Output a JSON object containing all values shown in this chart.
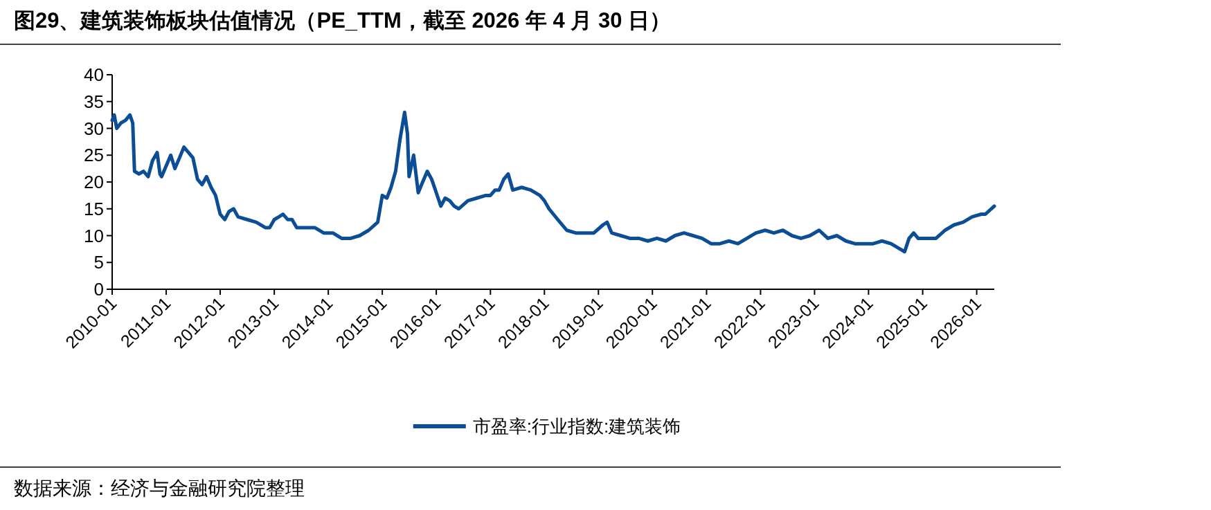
{
  "chart_data": {
    "type": "line",
    "title": "图29、建筑装饰板块估值情况（PE_TTM，截至 2026 年 4 月 30 日）",
    "annotations": [
      "数据来源：经济与金融研究院整理"
    ],
    "legend": "bottom",
    "grid": false,
    "marker": "none",
    "line_style": "solid",
    "xlim": [
      "2010-01",
      "2026-04-30"
    ],
    "xticks": [
      "2010-01",
      "2011-01",
      "2012-01",
      "2013-01",
      "2014-01",
      "2015-01",
      "2016-01",
      "2017-01",
      "2018-01",
      "2019-01",
      "2020-01",
      "2021-01",
      "2022-01",
      "2023-01",
      "2024-01",
      "2025-01",
      "2026-01"
    ],
    "ylim": [
      0,
      40
    ],
    "yticks": [
      0,
      5,
      10,
      15,
      20,
      25,
      30,
      35,
      40
    ],
    "series": [
      {
        "name": "市盈率:行业指数:建筑装饰",
        "color": "#0c4e96",
        "x": [
          "2010-01",
          "2010-01-15",
          "2010-02",
          "2010-03",
          "2010-04",
          "2010-05",
          "2010-05-20",
          "2010-06",
          "2010-07",
          "2010-08",
          "2010-09",
          "2010-10",
          "2010-11",
          "2010-11-20",
          "2010-12",
          "2011-01",
          "2011-02",
          "2011-03",
          "2011-04",
          "2011-05",
          "2011-06",
          "2011-07",
          "2011-08",
          "2011-09",
          "2011-10",
          "2011-11",
          "2011-12",
          "2012-01",
          "2012-02",
          "2012-03",
          "2012-04",
          "2012-05",
          "2012-07",
          "2012-09",
          "2012-11",
          "2012-12",
          "2013-01",
          "2013-02",
          "2013-03",
          "2013-04",
          "2013-05",
          "2013-06",
          "2013-08",
          "2013-10",
          "2013-12",
          "2014-02",
          "2014-04",
          "2014-06",
          "2014-08",
          "2014-10",
          "2014-12",
          "2015-01",
          "2015-02",
          "2015-03",
          "2015-04",
          "2015-05",
          "2015-06",
          "2015-06-20",
          "2015-07",
          "2015-08",
          "2015-09",
          "2015-10",
          "2015-11",
          "2015-12",
          "2016-01",
          "2016-02",
          "2016-03",
          "2016-04",
          "2016-05",
          "2016-06",
          "2016-08",
          "2016-10",
          "2016-12",
          "2017-01",
          "2017-02",
          "2017-03",
          "2017-04",
          "2017-05",
          "2017-06",
          "2017-08",
          "2017-10",
          "2017-12",
          "2018-01",
          "2018-02",
          "2018-04",
          "2018-06",
          "2018-08",
          "2018-10",
          "2018-12",
          "2019-02",
          "2019-03",
          "2019-04",
          "2019-06",
          "2019-08",
          "2019-10",
          "2019-12",
          "2020-02",
          "2020-04",
          "2020-06",
          "2020-08",
          "2020-10",
          "2020-12",
          "2021-02",
          "2021-04",
          "2021-06",
          "2021-08",
          "2021-10",
          "2021-12",
          "2022-02",
          "2022-04",
          "2022-06",
          "2022-08",
          "2022-10",
          "2022-12",
          "2023-02",
          "2023-04",
          "2023-06",
          "2023-08",
          "2023-10",
          "2023-12",
          "2024-02",
          "2024-04",
          "2024-06",
          "2024-08",
          "2024-09",
          "2024-10",
          "2024-11",
          "2024-12",
          "2025-02",
          "2025-04",
          "2025-06",
          "2025-08",
          "2025-10",
          "2025-12",
          "2026-02",
          "2026-03",
          "2026-04-30"
        ],
        "values": [
          31.5,
          32.5,
          30,
          31,
          31.5,
          32.5,
          31,
          22,
          21.5,
          22,
          21,
          24,
          25.5,
          21.5,
          21,
          23,
          25,
          22.5,
          24.5,
          26.5,
          25.5,
          24.5,
          20.5,
          19.5,
          21,
          19,
          17.5,
          14,
          13,
          14.5,
          15,
          13.5,
          13,
          12.5,
          11.5,
          11.5,
          13,
          13.5,
          14,
          13,
          13,
          11.5,
          11.5,
          11.5,
          10.5,
          10.5,
          9.5,
          9.5,
          10,
          11,
          12.5,
          17.5,
          17,
          19,
          22,
          28,
          33,
          29,
          21,
          25,
          18,
          20,
          22,
          20.5,
          18,
          15.5,
          17,
          16.5,
          15.5,
          15,
          16.5,
          17,
          17.5,
          17.5,
          18.5,
          18.5,
          20.5,
          21.5,
          18.5,
          19,
          18.5,
          17.5,
          16.5,
          15,
          13,
          11,
          10.5,
          10.5,
          10.5,
          12,
          12.5,
          10.5,
          10,
          9.5,
          9.5,
          9,
          9.5,
          9,
          10,
          10.5,
          10,
          9.5,
          8.5,
          8.5,
          9,
          8.5,
          9.5,
          10.5,
          11,
          10.5,
          11,
          10,
          9.5,
          10,
          11,
          9.5,
          10,
          9,
          8.5,
          8.5,
          8.5,
          9,
          8.5,
          7.5,
          7,
          9.5,
          10.5,
          9.5,
          9.5,
          9.5,
          11,
          12,
          12.5,
          13.5,
          14,
          14,
          15.5
        ]
      }
    ]
  }
}
